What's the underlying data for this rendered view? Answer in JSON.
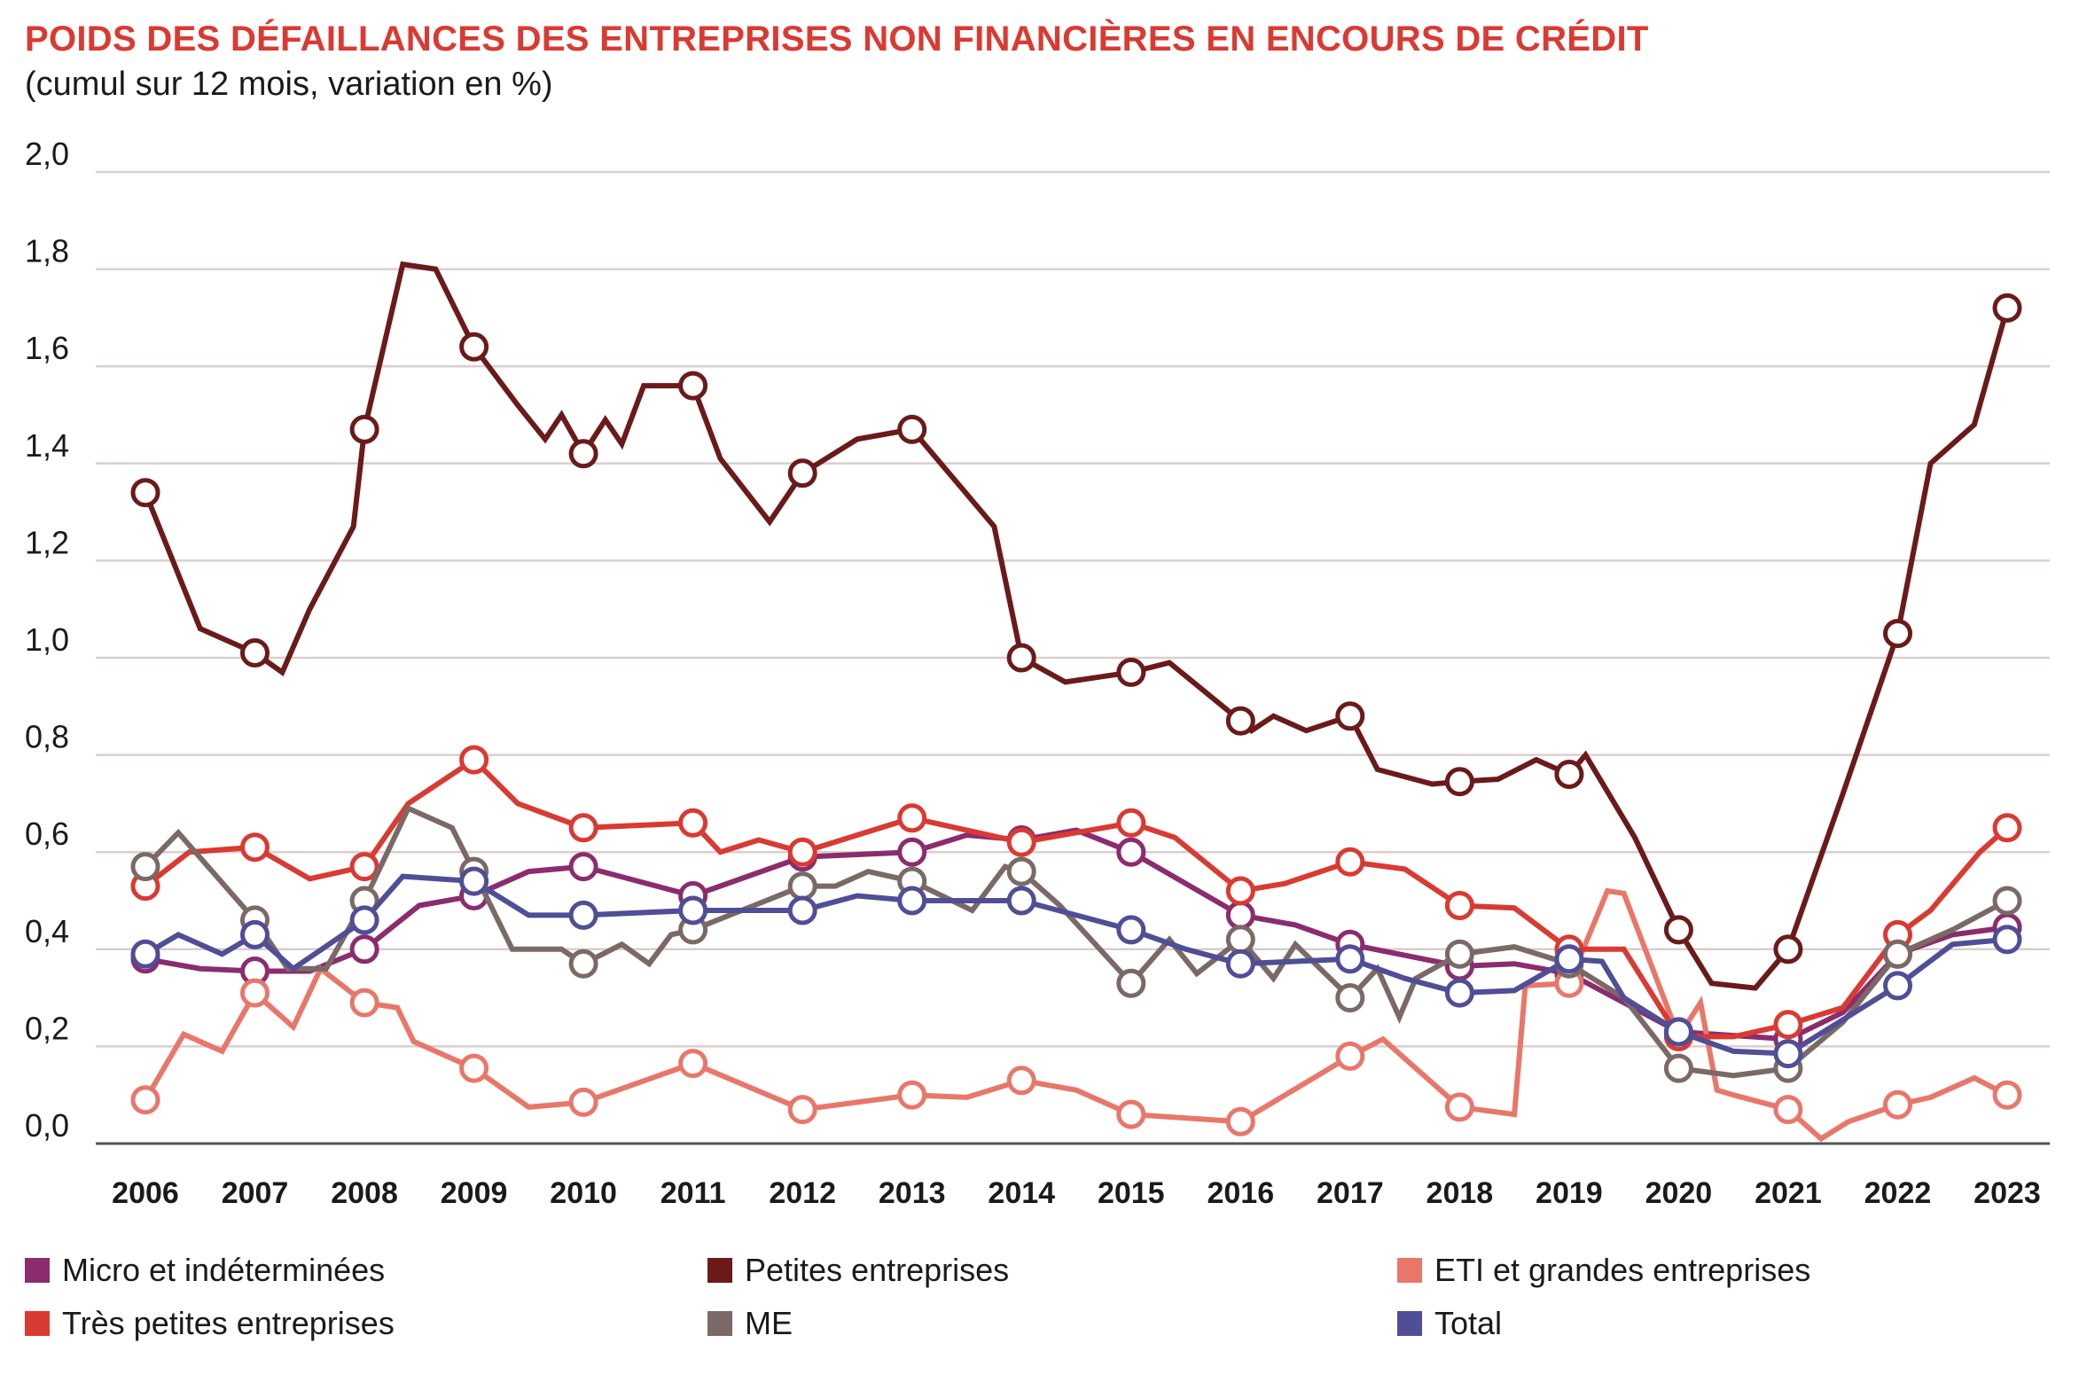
{
  "chart_data": {
    "type": "line",
    "title": "POIDS DES DÉFAILLANCES DES ENTREPRISES NON FINANCIÈRES EN ENCOURS DE CRÉDIT",
    "subtitle": "(cumul sur 12 mois, variation en %)",
    "xlabel": "",
    "ylabel": "",
    "xlim": [
      2005.75,
      2023.4
    ],
    "ylim": [
      0.0,
      2.0
    ],
    "yticks": [
      0.0,
      0.2,
      0.4,
      0.6,
      0.8,
      1.0,
      1.2,
      1.4,
      1.6,
      1.8,
      2.0
    ],
    "ytick_labels": [
      "0,0",
      "0,2",
      "0,4",
      "0,6",
      "0,8",
      "1,0",
      "1,2",
      "1,4",
      "1,6",
      "1,8",
      "2,0"
    ],
    "xticks": [
      2006,
      2007,
      2008,
      2009,
      2010,
      2011,
      2012,
      2013,
      2014,
      2015,
      2016,
      2017,
      2018,
      2019,
      2020,
      2021,
      2022,
      2023
    ],
    "xtick_labels": [
      "2006",
      "2007",
      "2008",
      "2009",
      "2010",
      "2011",
      "2012",
      "2013",
      "2014",
      "2015",
      "2016",
      "2017",
      "2018",
      "2019",
      "2020",
      "2021",
      "2022",
      "2023"
    ],
    "grid": "horizontal",
    "legend_position": "bottom",
    "series": [
      {
        "name": "Micro et indéterminées",
        "color": "#8b2c6e",
        "x": [
          2006,
          2006.5,
          2007,
          2007.5,
          2008,
          2008.5,
          2009,
          2009.5,
          2010,
          2011,
          2012,
          2013,
          2013.5,
          2014,
          2014.5,
          2015,
          2016,
          2016.5,
          2017,
          2018,
          2018.5,
          2019,
          2020,
          2021,
          2021.5,
          2022,
          2022.5,
          2023
        ],
        "y": [
          0.38,
          0.36,
          0.355,
          0.355,
          0.4,
          0.49,
          0.51,
          0.56,
          0.57,
          0.51,
          0.59,
          0.6,
          0.635,
          0.625,
          0.645,
          0.6,
          0.47,
          0.45,
          0.41,
          0.365,
          0.37,
          0.35,
          0.23,
          0.215,
          0.27,
          0.39,
          0.43,
          0.445
        ]
      },
      {
        "name": "Petites entreprises",
        "color": "#6b1a1a",
        "x": [
          2006,
          2006.5,
          2007,
          2007.25,
          2007.5,
          2007.9,
          2008,
          2008.35,
          2008.65,
          2009,
          2009.4,
          2009.65,
          2009.8,
          2010,
          2010.2,
          2010.35,
          2010.55,
          2010.85,
          2011,
          2011.25,
          2011.7,
          2012,
          2012.5,
          2013,
          2013.75,
          2014,
          2014.4,
          2015,
          2015.35,
          2016,
          2016.1,
          2016.3,
          2016.6,
          2017,
          2017.25,
          2017.75,
          2018,
          2018.35,
          2018.7,
          2019,
          2019.15,
          2019.6,
          2020,
          2020.3,
          2020.7,
          2021,
          2021.5,
          2022,
          2022.3,
          2022.7,
          2023
        ],
        "y": [
          1.34,
          1.06,
          1.01,
          0.97,
          1.1,
          1.27,
          1.47,
          1.81,
          1.8,
          1.64,
          1.52,
          1.45,
          1.5,
          1.42,
          1.49,
          1.44,
          1.56,
          1.56,
          1.56,
          1.41,
          1.28,
          1.38,
          1.45,
          1.47,
          1.27,
          1.0,
          0.95,
          0.97,
          0.99,
          0.87,
          0.85,
          0.88,
          0.85,
          0.88,
          0.77,
          0.74,
          0.745,
          0.75,
          0.79,
          0.76,
          0.8,
          0.63,
          0.44,
          0.33,
          0.32,
          0.4,
          0.72,
          1.05,
          1.4,
          1.48,
          1.72
        ]
      },
      {
        "name": "ETI et grandes entreprises",
        "color": "#e8776a",
        "x": [
          2006,
          2006.35,
          2006.7,
          2007,
          2007.35,
          2007.6,
          2008,
          2008.3,
          2008.45,
          2009,
          2009.5,
          2010,
          2011,
          2012,
          2013,
          2013.5,
          2014,
          2014.5,
          2015,
          2016,
          2017,
          2017.3,
          2018,
          2018.5,
          2018.6,
          2019,
          2019.35,
          2019.5,
          2020,
          2020.2,
          2020.35,
          2020.5,
          2021,
          2021.3,
          2021.55,
          2022,
          2022.3,
          2022.7,
          2023
        ],
        "y": [
          0.09,
          0.225,
          0.19,
          0.31,
          0.24,
          0.36,
          0.29,
          0.28,
          0.21,
          0.155,
          0.075,
          0.085,
          0.165,
          0.07,
          0.1,
          0.095,
          0.13,
          0.11,
          0.06,
          0.045,
          0.18,
          0.215,
          0.075,
          0.06,
          0.325,
          0.33,
          0.52,
          0.515,
          0.22,
          0.29,
          0.11,
          0.1,
          0.07,
          0.01,
          0.045,
          0.08,
          0.095,
          0.135,
          0.1
        ]
      },
      {
        "name": "Très petites entreprises",
        "color": "#d93a32",
        "x": [
          2006,
          2006.4,
          2007,
          2007.5,
          2008,
          2008.4,
          2009,
          2009.4,
          2010,
          2011,
          2011.25,
          2011.6,
          2012,
          2013,
          2014,
          2015,
          2015.4,
          2016,
          2016.4,
          2017,
          2017.5,
          2018,
          2018.5,
          2019,
          2019.5,
          2020,
          2020.5,
          2021,
          2021.5,
          2022,
          2022.3,
          2022.75,
          2023
        ],
        "y": [
          0.53,
          0.6,
          0.61,
          0.545,
          0.57,
          0.7,
          0.79,
          0.7,
          0.65,
          0.66,
          0.6,
          0.625,
          0.6,
          0.67,
          0.62,
          0.66,
          0.63,
          0.52,
          0.535,
          0.58,
          0.565,
          0.49,
          0.485,
          0.4,
          0.4,
          0.22,
          0.22,
          0.245,
          0.28,
          0.43,
          0.48,
          0.6,
          0.65
        ]
      },
      {
        "name": "ME",
        "color": "#7a6966",
        "x": [
          2006,
          2006.3,
          2007,
          2007.3,
          2007.65,
          2008,
          2008.4,
          2008.8,
          2009,
          2009.35,
          2009.8,
          2010,
          2010.35,
          2010.6,
          2010.8,
          2011,
          2012,
          2012.3,
          2012.6,
          2013,
          2013.55,
          2013.85,
          2014,
          2014.35,
          2015,
          2015.35,
          2015.6,
          2016,
          2016.3,
          2016.5,
          2017,
          2017.25,
          2017.45,
          2017.6,
          2018,
          2018.5,
          2019,
          2019.5,
          2020,
          2020.5,
          2021,
          2021.5,
          2022,
          2022.5,
          2023
        ],
        "y": [
          0.57,
          0.64,
          0.46,
          0.36,
          0.36,
          0.5,
          0.69,
          0.65,
          0.56,
          0.4,
          0.4,
          0.37,
          0.41,
          0.37,
          0.43,
          0.44,
          0.53,
          0.53,
          0.56,
          0.54,
          0.48,
          0.57,
          0.56,
          0.49,
          0.33,
          0.42,
          0.35,
          0.42,
          0.34,
          0.41,
          0.3,
          0.36,
          0.26,
          0.34,
          0.39,
          0.405,
          0.37,
          0.3,
          0.155,
          0.14,
          0.155,
          0.25,
          0.39,
          0.44,
          0.5
        ]
      },
      {
        "name": "Total",
        "color": "#4f4e96",
        "x": [
          2006,
          2006.3,
          2006.7,
          2007,
          2007.35,
          2008,
          2008.35,
          2009,
          2009.5,
          2010,
          2011,
          2012,
          2012.5,
          2013,
          2014,
          2014.5,
          2015,
          2015.5,
          2016,
          2016.5,
          2017,
          2017.5,
          2018,
          2018.5,
          2019,
          2019.3,
          2019.5,
          2020,
          2020.5,
          2021,
          2021.5,
          2022,
          2022.5,
          2023
        ],
        "y": [
          0.39,
          0.43,
          0.39,
          0.43,
          0.36,
          0.46,
          0.55,
          0.54,
          0.47,
          0.47,
          0.48,
          0.48,
          0.51,
          0.5,
          0.5,
          0.47,
          0.44,
          0.4,
          0.37,
          0.375,
          0.38,
          0.34,
          0.31,
          0.315,
          0.38,
          0.375,
          0.3,
          0.23,
          0.19,
          0.185,
          0.255,
          0.325,
          0.41,
          0.42
        ]
      }
    ],
    "markers": {
      "Micro et indéterminées": [
        2006,
        2007,
        2008,
        2009,
        2010,
        2011,
        2012,
        2013,
        2014,
        2015,
        2016,
        2017,
        2018,
        2019,
        2020,
        2021,
        2022,
        2023
      ],
      "Petites entreprises": [
        2006,
        2007,
        2008,
        2009,
        2010,
        2011,
        2012,
        2013,
        2014,
        2015,
        2016,
        2017,
        2018,
        2019,
        2020,
        2021,
        2022,
        2023
      ],
      "ETI et grandes entreprises": [
        2006,
        2007,
        2008,
        2009,
        2010,
        2011,
        2012,
        2013,
        2014,
        2015,
        2016,
        2017,
        2018,
        2019,
        2020,
        2021,
        2022,
        2023
      ],
      "Très petites entreprises": [
        2006,
        2007,
        2008,
        2009,
        2010,
        2011,
        2012,
        2013,
        2014,
        2015,
        2016,
        2017,
        2018,
        2019,
        2020,
        2021,
        2022,
        2023
      ],
      "ME": [
        2006,
        2007,
        2008,
        2009,
        2010,
        2011,
        2012,
        2013,
        2014,
        2015,
        2016,
        2017,
        2018,
        2019,
        2020,
        2021,
        2022,
        2023
      ],
      "Total": [
        2006,
        2007,
        2008,
        2009,
        2010,
        2011,
        2012,
        2013,
        2014,
        2015,
        2016,
        2017,
        2018,
        2019,
        2020,
        2021,
        2022,
        2023
      ]
    },
    "colors": {
      "grid": "#d9cfce",
      "axis": "#555555",
      "title": "#d93a32"
    }
  },
  "legend": {
    "items": [
      {
        "label": "Micro et indéterminées",
        "color": "#8b2c6e"
      },
      {
        "label": "Petites entreprises",
        "color": "#6b1a1a"
      },
      {
        "label": "ETI et grandes entreprises",
        "color": "#e8776a"
      },
      {
        "label": "Très petites entreprises",
        "color": "#d93a32"
      },
      {
        "label": "ME",
        "color": "#7a6966"
      },
      {
        "label": "Total",
        "color": "#4f4e96"
      }
    ]
  }
}
